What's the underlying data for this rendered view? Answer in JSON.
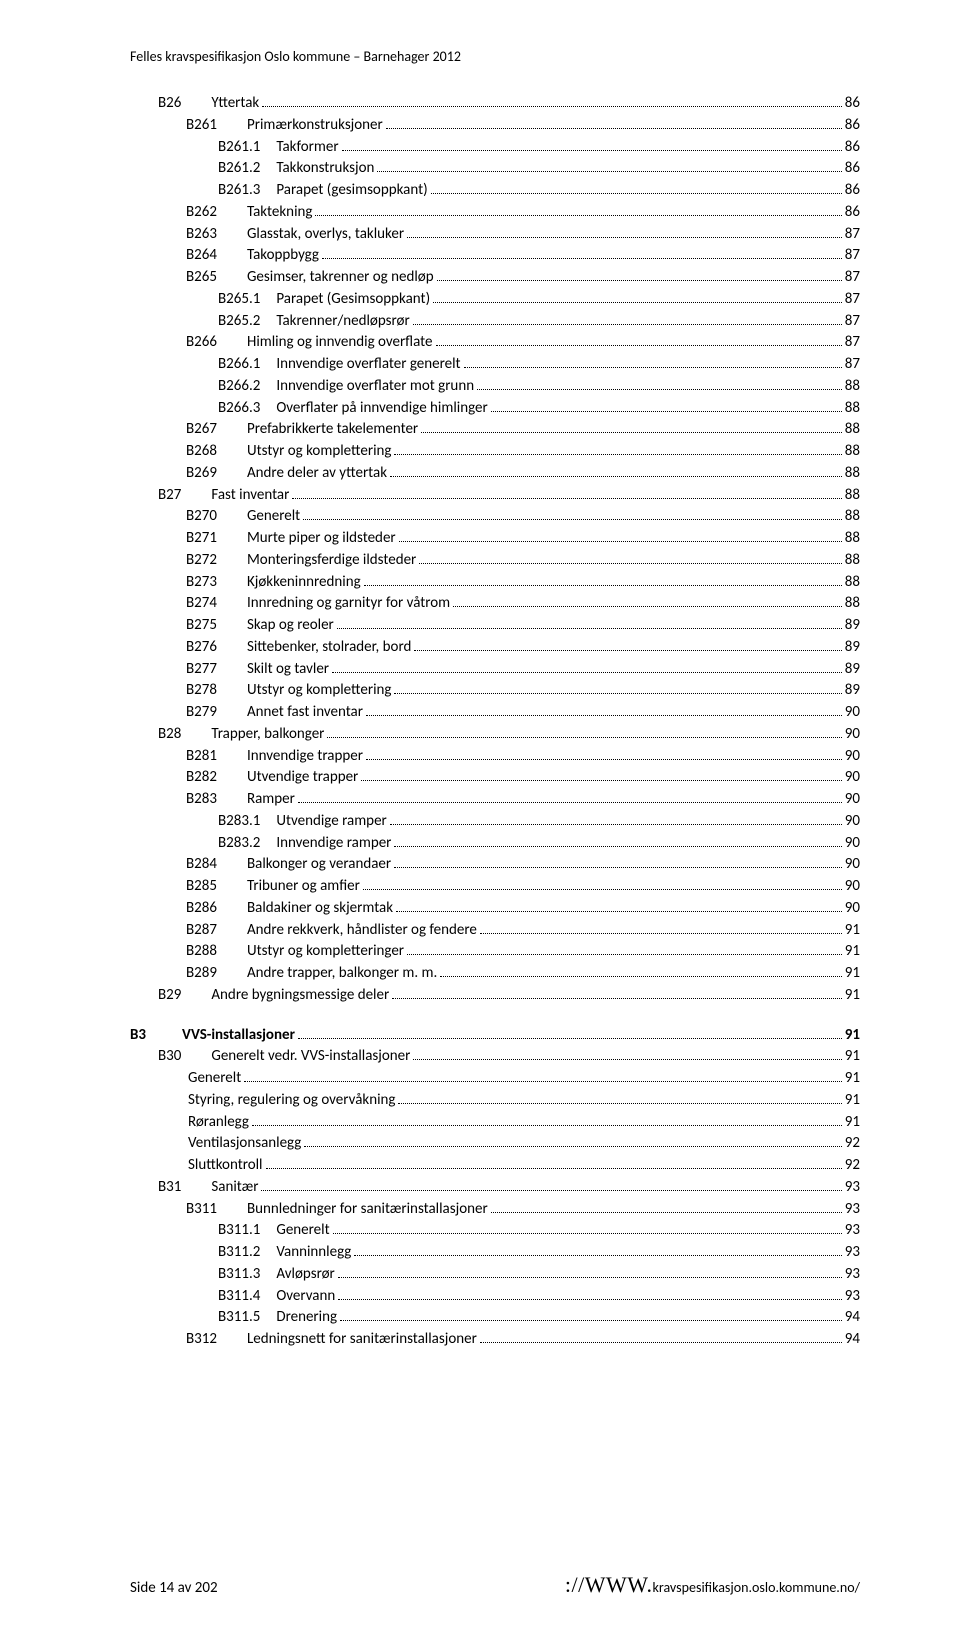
{
  "header": "Felles kravspesifikasjon Oslo kommune – Barnehager 2012",
  "footer": {
    "left": "Side 14 av 202",
    "www": "://WWW.",
    "rest": "kravspesifikasjon.oslo.kommune.no/"
  },
  "toc": [
    {
      "level": 2,
      "code": "B26",
      "codeGap": "gap28",
      "label": "Yttertak",
      "page": "86"
    },
    {
      "level": 3,
      "code": "B261",
      "codeGap": "gap28",
      "label": "Primærkonstruksjoner",
      "page": "86"
    },
    {
      "level": 4,
      "code": "B261.1",
      "codeGap": "gap14",
      "label": "Takformer",
      "page": "86"
    },
    {
      "level": 4,
      "code": "B261.2",
      "codeGap": "gap14",
      "label": "Takkonstruksjon",
      "page": "86"
    },
    {
      "level": 4,
      "code": "B261.3",
      "codeGap": "gap14",
      "label": "Parapet (gesimsoppkant)",
      "page": "86"
    },
    {
      "level": 3,
      "code": "B262",
      "codeGap": "gap28",
      "label": "Taktekning",
      "page": "86"
    },
    {
      "level": 3,
      "code": "B263",
      "codeGap": "gap28",
      "label": "Glasstak, overlys, takluker",
      "page": "87"
    },
    {
      "level": 3,
      "code": "B264",
      "codeGap": "gap28",
      "label": "Takoppbygg",
      "page": "87"
    },
    {
      "level": 3,
      "code": "B265",
      "codeGap": "gap28",
      "label": "Gesimser, takrenner og nedløp",
      "page": "87"
    },
    {
      "level": 4,
      "code": "B265.1",
      "codeGap": "gap14",
      "label": "Parapet (Gesimsoppkant)",
      "page": "87"
    },
    {
      "level": 4,
      "code": "B265.2",
      "codeGap": "gap14",
      "label": "Takrenner/nedløpsrør",
      "page": "87"
    },
    {
      "level": 3,
      "code": "B266",
      "codeGap": "gap28",
      "label": "Himling og innvendig overflate",
      "page": "87"
    },
    {
      "level": 4,
      "code": "B266.1",
      "codeGap": "gap14",
      "label": "Innvendige overflater generelt",
      "page": "87"
    },
    {
      "level": 4,
      "code": "B266.2",
      "codeGap": "gap14",
      "label": "Innvendige overflater mot grunn",
      "page": "88"
    },
    {
      "level": 4,
      "code": "B266.3",
      "codeGap": "gap14",
      "label": "Overflater på innvendige himlinger",
      "page": "88"
    },
    {
      "level": 3,
      "code": "B267",
      "codeGap": "gap28",
      "label": "Prefabrikkerte takelementer",
      "page": "88"
    },
    {
      "level": 3,
      "code": "B268",
      "codeGap": "gap28",
      "label": "Utstyr og komplettering",
      "page": "88"
    },
    {
      "level": 3,
      "code": "B269",
      "codeGap": "gap28",
      "label": "Andre deler av yttertak",
      "page": "88"
    },
    {
      "level": 2,
      "code": "B27",
      "codeGap": "gap28",
      "label": "Fast inventar",
      "page": "88"
    },
    {
      "level": 3,
      "code": "B270",
      "codeGap": "gap28",
      "label": "Generelt",
      "page": "88"
    },
    {
      "level": 3,
      "code": "B271",
      "codeGap": "gap28",
      "label": "Murte piper og ildsteder",
      "page": "88"
    },
    {
      "level": 3,
      "code": "B272",
      "codeGap": "gap28",
      "label": "Monteringsferdige ildsteder",
      "page": "88"
    },
    {
      "level": 3,
      "code": "B273",
      "codeGap": "gap28",
      "label": "Kjøkkeninnredning",
      "page": "88"
    },
    {
      "level": 3,
      "code": "B274",
      "codeGap": "gap28",
      "label": "Innredning og garnityr for våtrom",
      "page": "88"
    },
    {
      "level": 3,
      "code": "B275",
      "codeGap": "gap28",
      "label": "Skap og reoler",
      "page": "89"
    },
    {
      "level": 3,
      "code": "B276",
      "codeGap": "gap28",
      "label": "Sittebenker, stolrader, bord",
      "page": "89"
    },
    {
      "level": 3,
      "code": "B277",
      "codeGap": "gap28",
      "label": "Skilt og tavler",
      "page": "89"
    },
    {
      "level": 3,
      "code": "B278",
      "codeGap": "gap28",
      "label": "Utstyr og komplettering",
      "page": "89"
    },
    {
      "level": 3,
      "code": "B279",
      "codeGap": "gap28",
      "label": "Annet fast inventar",
      "page": "90"
    },
    {
      "level": 2,
      "code": "B28",
      "codeGap": "gap28",
      "label": "Trapper, balkonger",
      "page": "90"
    },
    {
      "level": 3,
      "code": "B281",
      "codeGap": "gap28",
      "label": "Innvendige trapper",
      "page": "90"
    },
    {
      "level": 3,
      "code": "B282",
      "codeGap": "gap28",
      "label": "Utvendige trapper",
      "page": "90"
    },
    {
      "level": 3,
      "code": "B283",
      "codeGap": "gap28",
      "label": "Ramper",
      "page": "90"
    },
    {
      "level": 4,
      "code": "B283.1",
      "codeGap": "gap14",
      "label": "Utvendige ramper",
      "page": "90"
    },
    {
      "level": 4,
      "code": "B283.2",
      "codeGap": "gap14",
      "label": "Innvendige ramper",
      "page": "90"
    },
    {
      "level": 3,
      "code": "B284",
      "codeGap": "gap28",
      "label": "Balkonger og verandaer",
      "page": "90"
    },
    {
      "level": 3,
      "code": "B285",
      "codeGap": "gap28",
      "label": "Tribuner og amfier",
      "page": "90"
    },
    {
      "level": 3,
      "code": "B286",
      "codeGap": "gap28",
      "label": "Baldakiner og skjermtak",
      "page": "90"
    },
    {
      "level": 3,
      "code": "B287",
      "codeGap": "gap28",
      "label": "Andre rekkverk, håndlister og fendere",
      "page": "91"
    },
    {
      "level": 3,
      "code": "B288",
      "codeGap": "gap28",
      "label": "Utstyr og kompletteringer",
      "page": "91"
    },
    {
      "level": 3,
      "code": "B289",
      "codeGap": "gap28",
      "label": "Andre trapper, balkonger m. m.",
      "page": "91"
    },
    {
      "level": 2,
      "code": "B29",
      "codeGap": "gap28",
      "label": "Andre bygningsmessige deler",
      "page": "91"
    },
    {
      "spacer": true
    },
    {
      "level": 1,
      "bold": true,
      "code": "B3",
      "codeGap": "gap34",
      "label": "VVS-installasjoner",
      "page": "91"
    },
    {
      "level": 2,
      "code": "B30",
      "codeGap": "gap28",
      "label": "Generelt vedr. VVS-installasjoner",
      "page": "91"
    },
    {
      "level": 3,
      "code": "",
      "codeGap": "",
      "label": "Generelt",
      "page": "91"
    },
    {
      "level": 3,
      "code": "",
      "codeGap": "",
      "label": "Styring, regulering og overvåkning",
      "page": "91"
    },
    {
      "level": 3,
      "code": "",
      "codeGap": "",
      "label": "Røranlegg",
      "page": "91"
    },
    {
      "level": 3,
      "code": "",
      "codeGap": "",
      "label": "Ventilasjonsanlegg",
      "page": "92"
    },
    {
      "level": 3,
      "code": "",
      "codeGap": "",
      "label": "Sluttkontroll",
      "page": "92"
    },
    {
      "level": 2,
      "code": "B31",
      "codeGap": "gap28",
      "label": "Sanitær",
      "page": "93"
    },
    {
      "level": 3,
      "code": "B311",
      "codeGap": "gap28",
      "label": "Bunnledninger for sanitærinstallasjoner",
      "page": "93"
    },
    {
      "level": 4,
      "code": "B311.1",
      "codeGap": "gap14",
      "label": "Generelt",
      "page": "93"
    },
    {
      "level": 4,
      "code": "B311.2",
      "codeGap": "gap14",
      "label": "Vanninnlegg",
      "page": "93"
    },
    {
      "level": 4,
      "code": "B311.3",
      "codeGap": "gap14",
      "label": "Avløpsrør",
      "page": "93"
    },
    {
      "level": 4,
      "code": "B311.4",
      "codeGap": "gap14",
      "label": "Overvann",
      "page": "93"
    },
    {
      "level": 4,
      "code": "B311.5",
      "codeGap": "gap14",
      "label": "Drenering",
      "page": "94"
    },
    {
      "level": 3,
      "code": "B312",
      "codeGap": "gap28",
      "label": "Ledningsnett for sanitærinstallasjoner",
      "page": "94"
    }
  ]
}
